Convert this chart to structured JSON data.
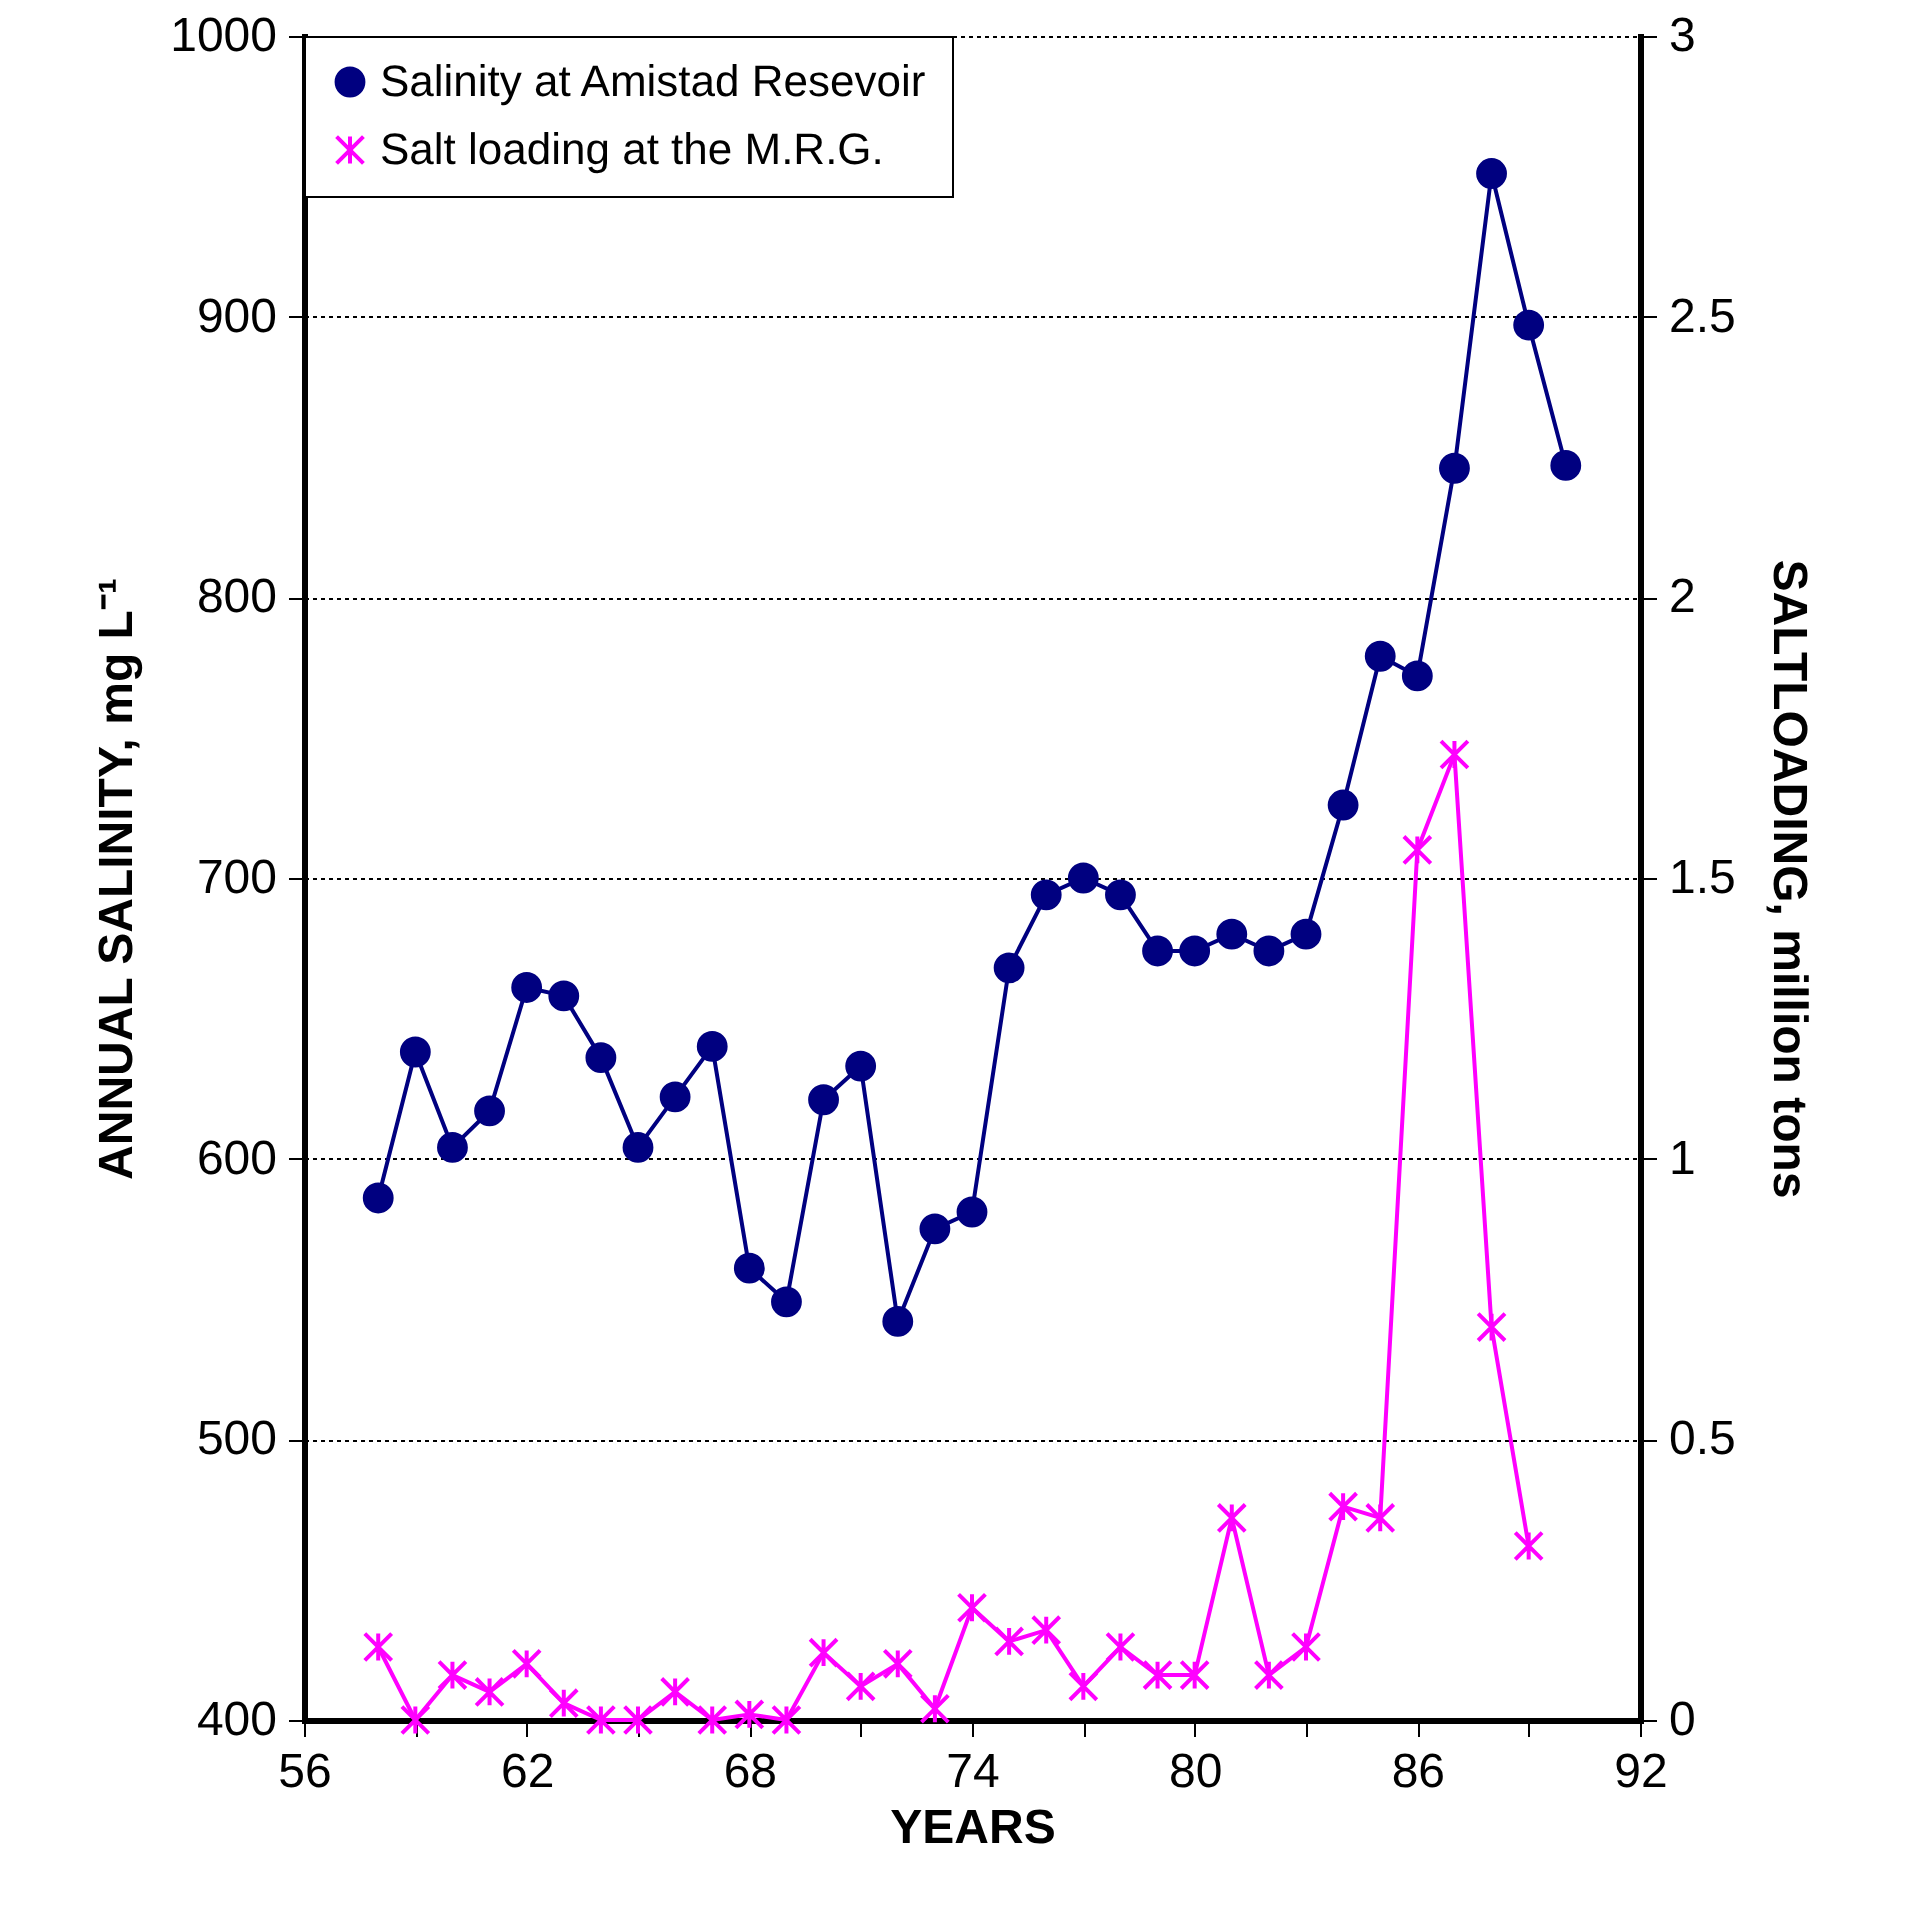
{
  "chart_data": {
    "type": "line",
    "xlabel": "YEARS",
    "ylabel": "ANNUAL SALINITY, mg L⁻¹",
    "y2label": "SALTLOADING, million tons",
    "xlim": [
      56,
      92
    ],
    "xticks": [
      56,
      {
        "value": 59,
        "label": null
      },
      62,
      {
        "value": 65,
        "label": null
      },
      68,
      {
        "value": 71,
        "label": null
      },
      74,
      {
        "value": 77,
        "label": null
      },
      80,
      {
        "value": 83,
        "label": null
      },
      86,
      {
        "value": 89,
        "label": null
      },
      92
    ],
    "ylim": [
      400,
      1000
    ],
    "yticks": [
      400,
      500,
      600,
      700,
      800,
      900,
      1000
    ],
    "y2lim": [
      0,
      3
    ],
    "y2ticks": [
      0,
      0.5,
      1,
      1.5,
      2,
      2.5,
      3
    ],
    "grid": "y",
    "legend": "top left",
    "series": [
      {
        "name": "Salinity at Amistad Resevoir",
        "color": "#000080",
        "marker": "circle",
        "x": [
          58,
          59,
          60,
          61,
          62,
          63,
          64,
          65,
          66,
          67,
          68,
          69,
          70,
          71,
          72,
          73,
          74,
          75,
          76,
          77,
          78,
          79,
          80,
          81,
          82,
          83,
          84,
          85,
          86,
          87,
          88,
          89,
          90
        ],
        "values": [
          586,
          638,
          604,
          617,
          661,
          658,
          636,
          604,
          622,
          640,
          561,
          549,
          621,
          633,
          542,
          575,
          581,
          668,
          694,
          700,
          694,
          674,
          674,
          680,
          674,
          680,
          726,
          779,
          772,
          846,
          951,
          897,
          847
        ]
      },
      {
        "name": "Salt loading at the M.R.G.",
        "color": "#ff00ff",
        "marker": "cross",
        "axis": "y2",
        "x": [
          58,
          59,
          60,
          61,
          62,
          63,
          64,
          65,
          66,
          67,
          68,
          69,
          70,
          71,
          72,
          73,
          74,
          75,
          76,
          77,
          78,
          79,
          80,
          81,
          82,
          83,
          84,
          85,
          86,
          87,
          88,
          89
        ],
        "values": [
          0.13,
          0,
          0.08,
          0.05,
          0.1,
          0.03,
          0,
          0,
          0.05,
          0,
          0.01,
          0,
          0.12,
          0.06,
          0.1,
          0.02,
          0.2,
          0.14,
          0.16,
          0.06,
          0.13,
          0.08,
          0.08,
          0.36,
          0.08,
          0.13,
          0.38,
          0.36,
          1.55,
          1.72,
          0.7,
          0.31
        ]
      }
    ]
  }
}
